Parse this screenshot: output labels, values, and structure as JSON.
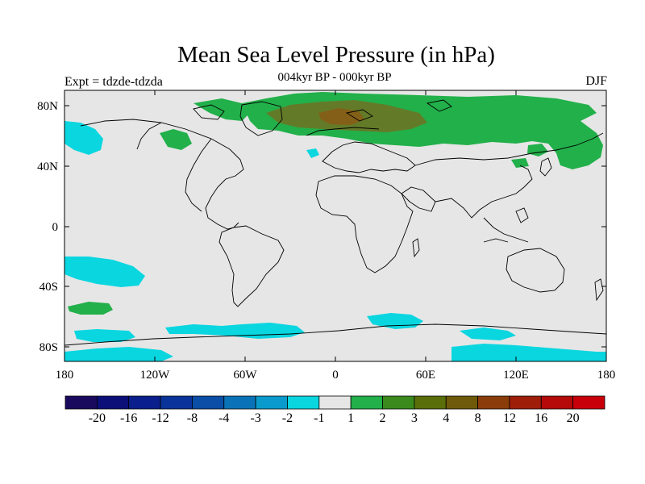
{
  "header": {
    "title": "Mean Sea Level Pressure (in hPa)",
    "subtitle": "004kyr BP - 000kyr BP",
    "left_label": "Expt = tdzde-tdzda",
    "right_label": "DJF"
  },
  "axes": {
    "y_ticks": [
      "80N",
      "40N",
      "0",
      "40S",
      "80S"
    ],
    "x_ticks": [
      "180",
      "120W",
      "60W",
      "0",
      "60E",
      "120E",
      "180"
    ]
  },
  "colorbar": {
    "colors": [
      "#1a0a5e",
      "#0c0f78",
      "#0a1f8c",
      "#0a3399",
      "#0a4ea6",
      "#0a73b8",
      "#0a9bcc",
      "#0ad6e0",
      "#e6e6e6",
      "#22b04a",
      "#3a8a1e",
      "#5a6e0a",
      "#6e5a0a",
      "#8a3c0a",
      "#9e1e0a",
      "#b40a0a",
      "#c8000a"
    ],
    "labels": [
      "-20",
      "-16",
      "-12",
      "-8",
      "-4",
      "-3",
      "-2",
      "-1",
      "1",
      "2",
      "3",
      "4",
      "8",
      "12",
      "16",
      "20"
    ]
  },
  "palette": {
    "background": "#e6e6e6",
    "cyan": "#0ad6e0",
    "green": "#22b04a",
    "olive": "#7a6a1e",
    "brown": "#8a5a14"
  }
}
